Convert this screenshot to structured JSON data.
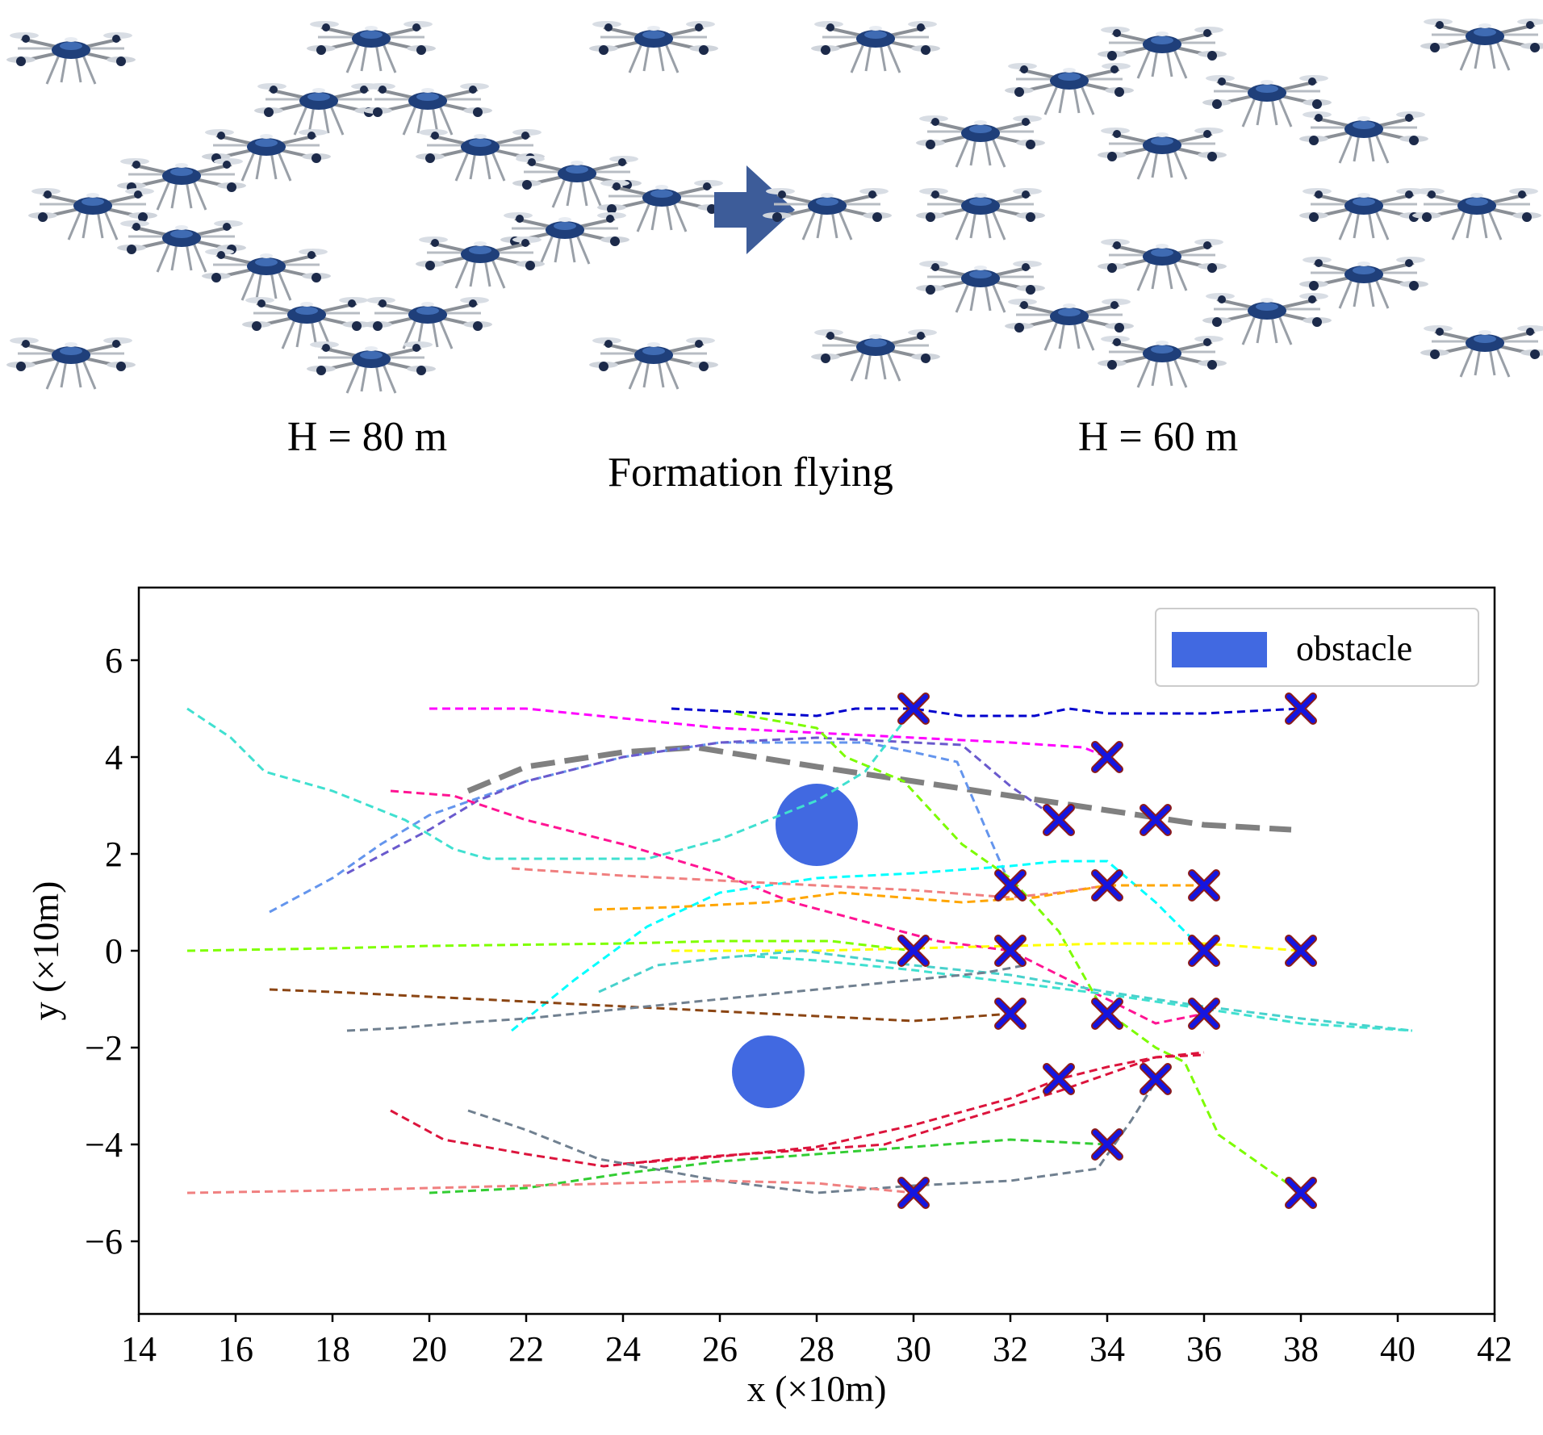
{
  "diagram": {
    "left_label": "H = 80 m",
    "right_label": "H = 60 m",
    "caption": "Formation flying",
    "icon": "drone-icon",
    "arrow_icon": "right-arrow-icon",
    "drone_color": "#1f3f7a",
    "arrow_color": "#3d5c99"
  },
  "chart_data": {
    "type": "line",
    "title": "",
    "xlabel": "x (×10m)",
    "ylabel": "y (×10m)",
    "xlim": [
      14,
      42
    ],
    "ylim": [
      -7.5,
      7.5
    ],
    "xticks": [
      14,
      16,
      18,
      20,
      22,
      24,
      26,
      28,
      30,
      32,
      34,
      36,
      38,
      40,
      42
    ],
    "yticks": [
      -6,
      -4,
      -2,
      0,
      2,
      4,
      6
    ],
    "xtick_labels": [
      "14",
      "16",
      "18",
      "20",
      "22",
      "24",
      "26",
      "28",
      "30",
      "32",
      "34",
      "36",
      "38",
      "40",
      "42"
    ],
    "ytick_labels": [
      "−6",
      "−4",
      "−2",
      "0",
      "2",
      "4",
      "6"
    ],
    "grid": false,
    "legend": {
      "position": "top-right",
      "entries": [
        {
          "label": "obstacle",
          "color": "#4169e1"
        }
      ]
    },
    "obstacles": [
      {
        "x": 28,
        "y": 2.6,
        "r": 0.85,
        "color": "#4169e1"
      },
      {
        "x": 27,
        "y": -2.5,
        "r": 0.75,
        "color": "#4169e1"
      }
    ],
    "targets": [
      [
        30,
        5
      ],
      [
        38,
        5
      ],
      [
        34,
        4
      ],
      [
        33,
        2.7
      ],
      [
        35,
        2.7
      ],
      [
        32,
        1.35
      ],
      [
        34,
        1.35
      ],
      [
        36,
        1.35
      ],
      [
        30,
        0
      ],
      [
        32,
        0
      ],
      [
        36,
        0
      ],
      [
        38,
        0
      ],
      [
        32,
        -1.3
      ],
      [
        34,
        -1.3
      ],
      [
        36,
        -1.3
      ],
      [
        33,
        -2.65
      ],
      [
        35,
        -2.65
      ],
      [
        34,
        -4
      ],
      [
        30,
        -5
      ],
      [
        38,
        -5
      ]
    ],
    "series": [
      {
        "name": "path-1",
        "color": "#0000cd",
        "points": [
          [
            25,
            5
          ],
          [
            28,
            4.85
          ],
          [
            28.8,
            5
          ],
          [
            30,
            5
          ],
          [
            31,
            4.85
          ],
          [
            32.5,
            4.85
          ],
          [
            33.2,
            5
          ],
          [
            34,
            4.9
          ],
          [
            36,
            4.9
          ],
          [
            38,
            5
          ]
        ]
      },
      {
        "name": "path-2",
        "color": "#ff00ff",
        "points": [
          [
            20,
            5
          ],
          [
            22,
            5
          ],
          [
            24,
            4.8
          ],
          [
            26,
            4.6
          ],
          [
            28,
            4.5
          ],
          [
            30,
            4.4
          ],
          [
            32,
            4.3
          ],
          [
            33.5,
            4.2
          ],
          [
            34,
            4
          ]
        ]
      },
      {
        "name": "path-3",
        "color": "#808080",
        "dashed_thick": true,
        "points": [
          [
            20.8,
            3.3
          ],
          [
            22,
            3.8
          ],
          [
            24,
            4.1
          ],
          [
            25.5,
            4.2
          ],
          [
            28,
            3.8
          ],
          [
            30,
            3.5
          ],
          [
            32,
            3.2
          ],
          [
            34,
            2.9
          ],
          [
            36,
            2.6
          ],
          [
            37.8,
            2.5
          ]
        ]
      },
      {
        "name": "path-4",
        "color": "#6495ed",
        "points": [
          [
            16.7,
            0.8
          ],
          [
            18,
            1.5
          ],
          [
            19,
            2.2
          ],
          [
            20,
            2.8
          ],
          [
            22,
            3.5
          ],
          [
            24,
            4
          ],
          [
            26,
            4.3
          ],
          [
            28,
            4.3
          ],
          [
            29,
            4.3
          ],
          [
            30,
            4.1
          ],
          [
            30.9,
            3.9
          ],
          [
            31.5,
            2.5
          ],
          [
            32,
            1.35
          ]
        ]
      },
      {
        "name": "path-5",
        "color": "#6a5acd",
        "points": [
          [
            18.3,
            1.6
          ],
          [
            20,
            2.5
          ],
          [
            21,
            3.1
          ],
          [
            22,
            3.5
          ],
          [
            24,
            4
          ],
          [
            26,
            4.3
          ],
          [
            28,
            4.4
          ],
          [
            30,
            4.3
          ],
          [
            31,
            4.25
          ],
          [
            32,
            3.4
          ],
          [
            33,
            2.7
          ]
        ]
      },
      {
        "name": "path-6",
        "color": "#40e0d0",
        "points": [
          [
            15,
            5
          ],
          [
            15.9,
            4.4
          ],
          [
            16.6,
            3.7
          ],
          [
            18,
            3.3
          ],
          [
            19.5,
            2.7
          ],
          [
            20.5,
            2.1
          ],
          [
            21.2,
            1.9
          ],
          [
            23,
            1.9
          ],
          [
            24.5,
            1.9
          ],
          [
            26,
            2.3
          ],
          [
            28,
            3.1
          ],
          [
            29,
            3.7
          ],
          [
            30,
            5
          ]
        ]
      },
      {
        "name": "path-7",
        "color": "#ff1493",
        "points": [
          [
            19.2,
            3.3
          ],
          [
            20.5,
            3.2
          ],
          [
            22,
            2.7
          ],
          [
            24,
            2.2
          ],
          [
            26,
            1.6
          ],
          [
            27.5,
            1.0
          ],
          [
            29,
            0.6
          ],
          [
            30.5,
            0.2
          ],
          [
            32,
            0
          ],
          [
            34,
            -1.0
          ],
          [
            35,
            -1.5
          ],
          [
            36,
            -1.3
          ]
        ]
      },
      {
        "name": "path-8",
        "color": "#7cfc00",
        "points": [
          [
            26.3,
            4.9
          ],
          [
            28,
            4.6
          ],
          [
            28.6,
            4.0
          ],
          [
            29.8,
            3.5
          ],
          [
            31,
            2.2
          ],
          [
            32,
            1.5
          ],
          [
            33,
            0.4
          ],
          [
            33.9,
            -1.2
          ],
          [
            35,
            -2.0
          ],
          [
            35.6,
            -2.3
          ],
          [
            36.3,
            -3.8
          ],
          [
            38,
            -5
          ]
        ]
      },
      {
        "name": "path-9",
        "color": "#00ffff",
        "points": [
          [
            21.7,
            -1.65
          ],
          [
            23,
            -0.6
          ],
          [
            24.5,
            0.5
          ],
          [
            26,
            1.2
          ],
          [
            28,
            1.5
          ],
          [
            30,
            1.6
          ],
          [
            32,
            1.75
          ],
          [
            33,
            1.85
          ],
          [
            34,
            1.85
          ],
          [
            35,
            1.0
          ],
          [
            36,
            0
          ]
        ]
      },
      {
        "name": "path-10",
        "color": "#f08080",
        "points": [
          [
            21.7,
            1.7
          ],
          [
            24,
            1.55
          ],
          [
            26,
            1.45
          ],
          [
            28,
            1.35
          ],
          [
            30,
            1.25
          ],
          [
            32,
            1.1
          ],
          [
            33,
            1.2
          ],
          [
            34,
            1.35
          ]
        ]
      },
      {
        "name": "path-11",
        "color": "#ffa500",
        "points": [
          [
            23.4,
            0.85
          ],
          [
            25,
            0.9
          ],
          [
            27,
            1.0
          ],
          [
            28.5,
            1.2
          ],
          [
            31,
            1.0
          ],
          [
            32.5,
            1.1
          ],
          [
            34,
            1.35
          ],
          [
            36,
            1.35
          ]
        ]
      },
      {
        "name": "path-12",
        "color": "#7fff00",
        "points": [
          [
            15,
            0
          ],
          [
            18,
            0.05
          ],
          [
            20,
            0.1
          ],
          [
            24,
            0.15
          ],
          [
            26,
            0.2
          ],
          [
            28.3,
            0.2
          ],
          [
            30,
            0
          ]
        ]
      },
      {
        "name": "path-13",
        "color": "#ffff00",
        "points": [
          [
            25,
            0
          ],
          [
            28,
            0
          ],
          [
            32,
            0.1
          ],
          [
            34,
            0.15
          ],
          [
            36,
            0.15
          ],
          [
            38,
            0
          ]
        ]
      },
      {
        "name": "path-14",
        "color": "#48d1cc",
        "points": [
          [
            23.5,
            -0.85
          ],
          [
            24.7,
            -0.3
          ],
          [
            26,
            -0.15
          ],
          [
            27.7,
            0
          ],
          [
            30,
            -0.3
          ],
          [
            32,
            -0.5
          ],
          [
            34,
            -0.85
          ],
          [
            36,
            -1.15
          ],
          [
            38,
            -1.4
          ],
          [
            40.3,
            -1.65
          ]
        ]
      },
      {
        "name": "path-15",
        "color": "#40e0d0",
        "points": [
          [
            26.5,
            -0.1
          ],
          [
            28,
            -0.2
          ],
          [
            30,
            -0.4
          ],
          [
            32,
            -0.65
          ],
          [
            34,
            -0.9
          ],
          [
            36,
            -1.2
          ],
          [
            38,
            -1.5
          ],
          [
            40.3,
            -1.65
          ]
        ]
      },
      {
        "name": "path-16",
        "color": "#8b4513",
        "points": [
          [
            16.7,
            -0.8
          ],
          [
            18,
            -0.85
          ],
          [
            20,
            -0.95
          ],
          [
            24,
            -1.15
          ],
          [
            28,
            -1.35
          ],
          [
            30,
            -1.45
          ],
          [
            32,
            -1.3
          ]
        ]
      },
      {
        "name": "path-17",
        "color": "#708090",
        "points": [
          [
            18.3,
            -1.65
          ],
          [
            19.3,
            -1.6
          ],
          [
            20.5,
            -1.5
          ],
          [
            22,
            -1.4
          ],
          [
            24,
            -1.2
          ],
          [
            26,
            -1.0
          ],
          [
            28,
            -0.8
          ],
          [
            30,
            -0.6
          ],
          [
            31.5,
            -0.45
          ],
          [
            32.3,
            -0.3
          ]
        ]
      },
      {
        "name": "path-18",
        "color": "#dc143c",
        "points": [
          [
            19.2,
            -3.3
          ],
          [
            20.3,
            -3.9
          ],
          [
            22,
            -4.2
          ],
          [
            23.6,
            -4.45
          ],
          [
            25,
            -4.3
          ],
          [
            28,
            -4.1
          ],
          [
            29.4,
            -4.0
          ],
          [
            31,
            -3.5
          ],
          [
            33,
            -2.9
          ],
          [
            35,
            -2.2
          ],
          [
            36,
            -2.15
          ]
        ]
      },
      {
        "name": "path-19",
        "color": "#dc143c",
        "points": [
          [
            24,
            -4.4
          ],
          [
            26,
            -4.25
          ],
          [
            28,
            -4.05
          ],
          [
            30,
            -3.6
          ],
          [
            32,
            -3.05
          ],
          [
            33,
            -2.65
          ],
          [
            34,
            -2.4
          ],
          [
            35,
            -2.2
          ],
          [
            36,
            -2.1
          ]
        ]
      },
      {
        "name": "path-20",
        "color": "#708090",
        "points": [
          [
            20.8,
            -3.3
          ],
          [
            22,
            -3.7
          ],
          [
            23.5,
            -4.3
          ],
          [
            26,
            -4.75
          ],
          [
            28,
            -5.0
          ],
          [
            30,
            -4.85
          ],
          [
            32,
            -4.75
          ],
          [
            33.8,
            -4.5
          ],
          [
            34.5,
            -3.5
          ],
          [
            35,
            -2.7
          ]
        ]
      },
      {
        "name": "path-21",
        "color": "#32cd32",
        "points": [
          [
            20,
            -5
          ],
          [
            22,
            -4.9
          ],
          [
            24,
            -4.6
          ],
          [
            26,
            -4.35
          ],
          [
            28,
            -4.2
          ],
          [
            30,
            -4.05
          ],
          [
            32,
            -3.9
          ],
          [
            34,
            -4
          ]
        ]
      },
      {
        "name": "path-22",
        "color": "#f08080",
        "points": [
          [
            15,
            -5
          ],
          [
            18,
            -4.95
          ],
          [
            20,
            -4.9
          ],
          [
            22,
            -4.85
          ],
          [
            24,
            -4.8
          ],
          [
            26,
            -4.75
          ],
          [
            28,
            -4.8
          ],
          [
            30,
            -5
          ]
        ]
      }
    ]
  }
}
